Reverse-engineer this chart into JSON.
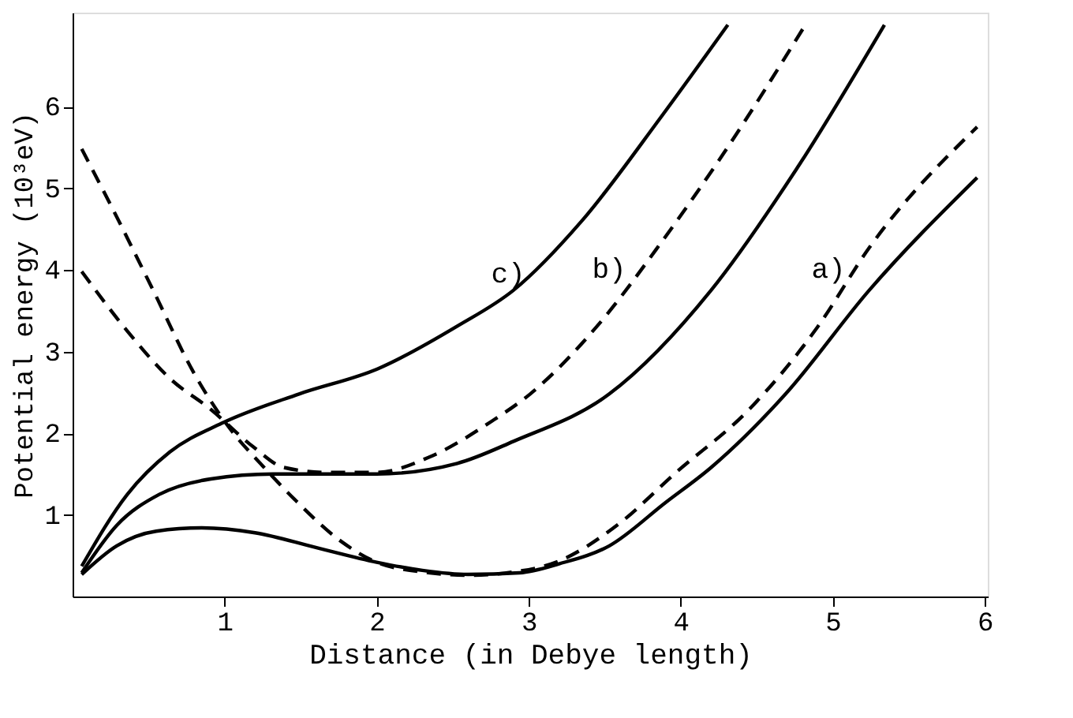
{
  "chart_data": {
    "type": "line",
    "xlabel": "Distance (in Debye length)",
    "ylabel": "Potential energy (10³eV)",
    "xlim": [
      0,
      6.02
    ],
    "ylim": [
      0,
      7.15
    ],
    "xticks": [
      1,
      2,
      3,
      4,
      5,
      6
    ],
    "yticks": [
      1,
      2,
      3,
      4,
      5,
      6
    ],
    "grid": false,
    "marker": "none",
    "series": [
      {
        "color": "#000000",
        "line_style": "solid",
        "x": [
          0.06,
          0.29,
          0.55,
          0.85,
          1.2,
          1.6,
          2.0,
          2.3,
          2.6,
          2.94,
          3.2,
          3.53,
          3.9,
          4.2,
          4.69,
          5.24,
          5.95
        ],
        "values": [
          0.27,
          0.62,
          0.8,
          0.84,
          0.78,
          0.6,
          0.42,
          0.32,
          0.27,
          0.29,
          0.4,
          0.62,
          1.15,
          1.58,
          2.48,
          3.75,
          5.13
        ]
      },
      {
        "color": "#000000",
        "line_style": "dashed",
        "x": [
          0.06,
          0.29,
          0.53,
          0.8,
          1.05,
          1.25,
          1.46,
          1.77,
          2.0,
          2.35,
          2.6,
          2.9,
          3.18,
          3.6,
          3.97,
          4.45,
          4.9,
          5.24,
          5.95
        ],
        "values": [
          5.48,
          4.65,
          3.75,
          2.73,
          2.02,
          1.6,
          1.19,
          0.67,
          0.42,
          0.29,
          0.26,
          0.3,
          0.42,
          0.9,
          1.52,
          2.29,
          3.3,
          4.27,
          5.75
        ]
      },
      {
        "color": "#000000",
        "line_style": "solid",
        "x": [
          0.06,
          0.29,
          0.57,
          0.91,
          1.32,
          2.0,
          2.53,
          2.9,
          3.53,
          4.2,
          4.76,
          5.34
        ],
        "values": [
          0.29,
          0.87,
          1.25,
          1.44,
          1.5,
          1.5,
          1.63,
          1.9,
          2.48,
          3.75,
          5.23,
          7.0
        ]
      },
      {
        "color": "#000000",
        "line_style": "dashed",
        "x": [
          0.06,
          0.36,
          0.64,
          0.91,
          1.19,
          1.39,
          1.67,
          2.0,
          2.35,
          2.76,
          3.01,
          3.45,
          3.87,
          4.28,
          4.82
        ],
        "values": [
          3.98,
          3.25,
          2.67,
          2.29,
          1.83,
          1.58,
          1.52,
          1.52,
          1.71,
          2.15,
          2.48,
          3.31,
          4.33,
          5.42,
          7.0
        ]
      },
      {
        "color": "#000000",
        "line_style": "solid",
        "x": [
          0.06,
          0.36,
          0.64,
          0.98,
          1.49,
          2.01,
          2.53,
          2.9,
          3.35,
          3.87,
          4.31
        ],
        "values": [
          0.37,
          1.25,
          1.77,
          2.12,
          2.48,
          2.79,
          3.31,
          3.75,
          4.6,
          5.87,
          7.0
        ]
      }
    ],
    "annotations": [
      "a)",
      "b)",
      "c)"
    ]
  }
}
